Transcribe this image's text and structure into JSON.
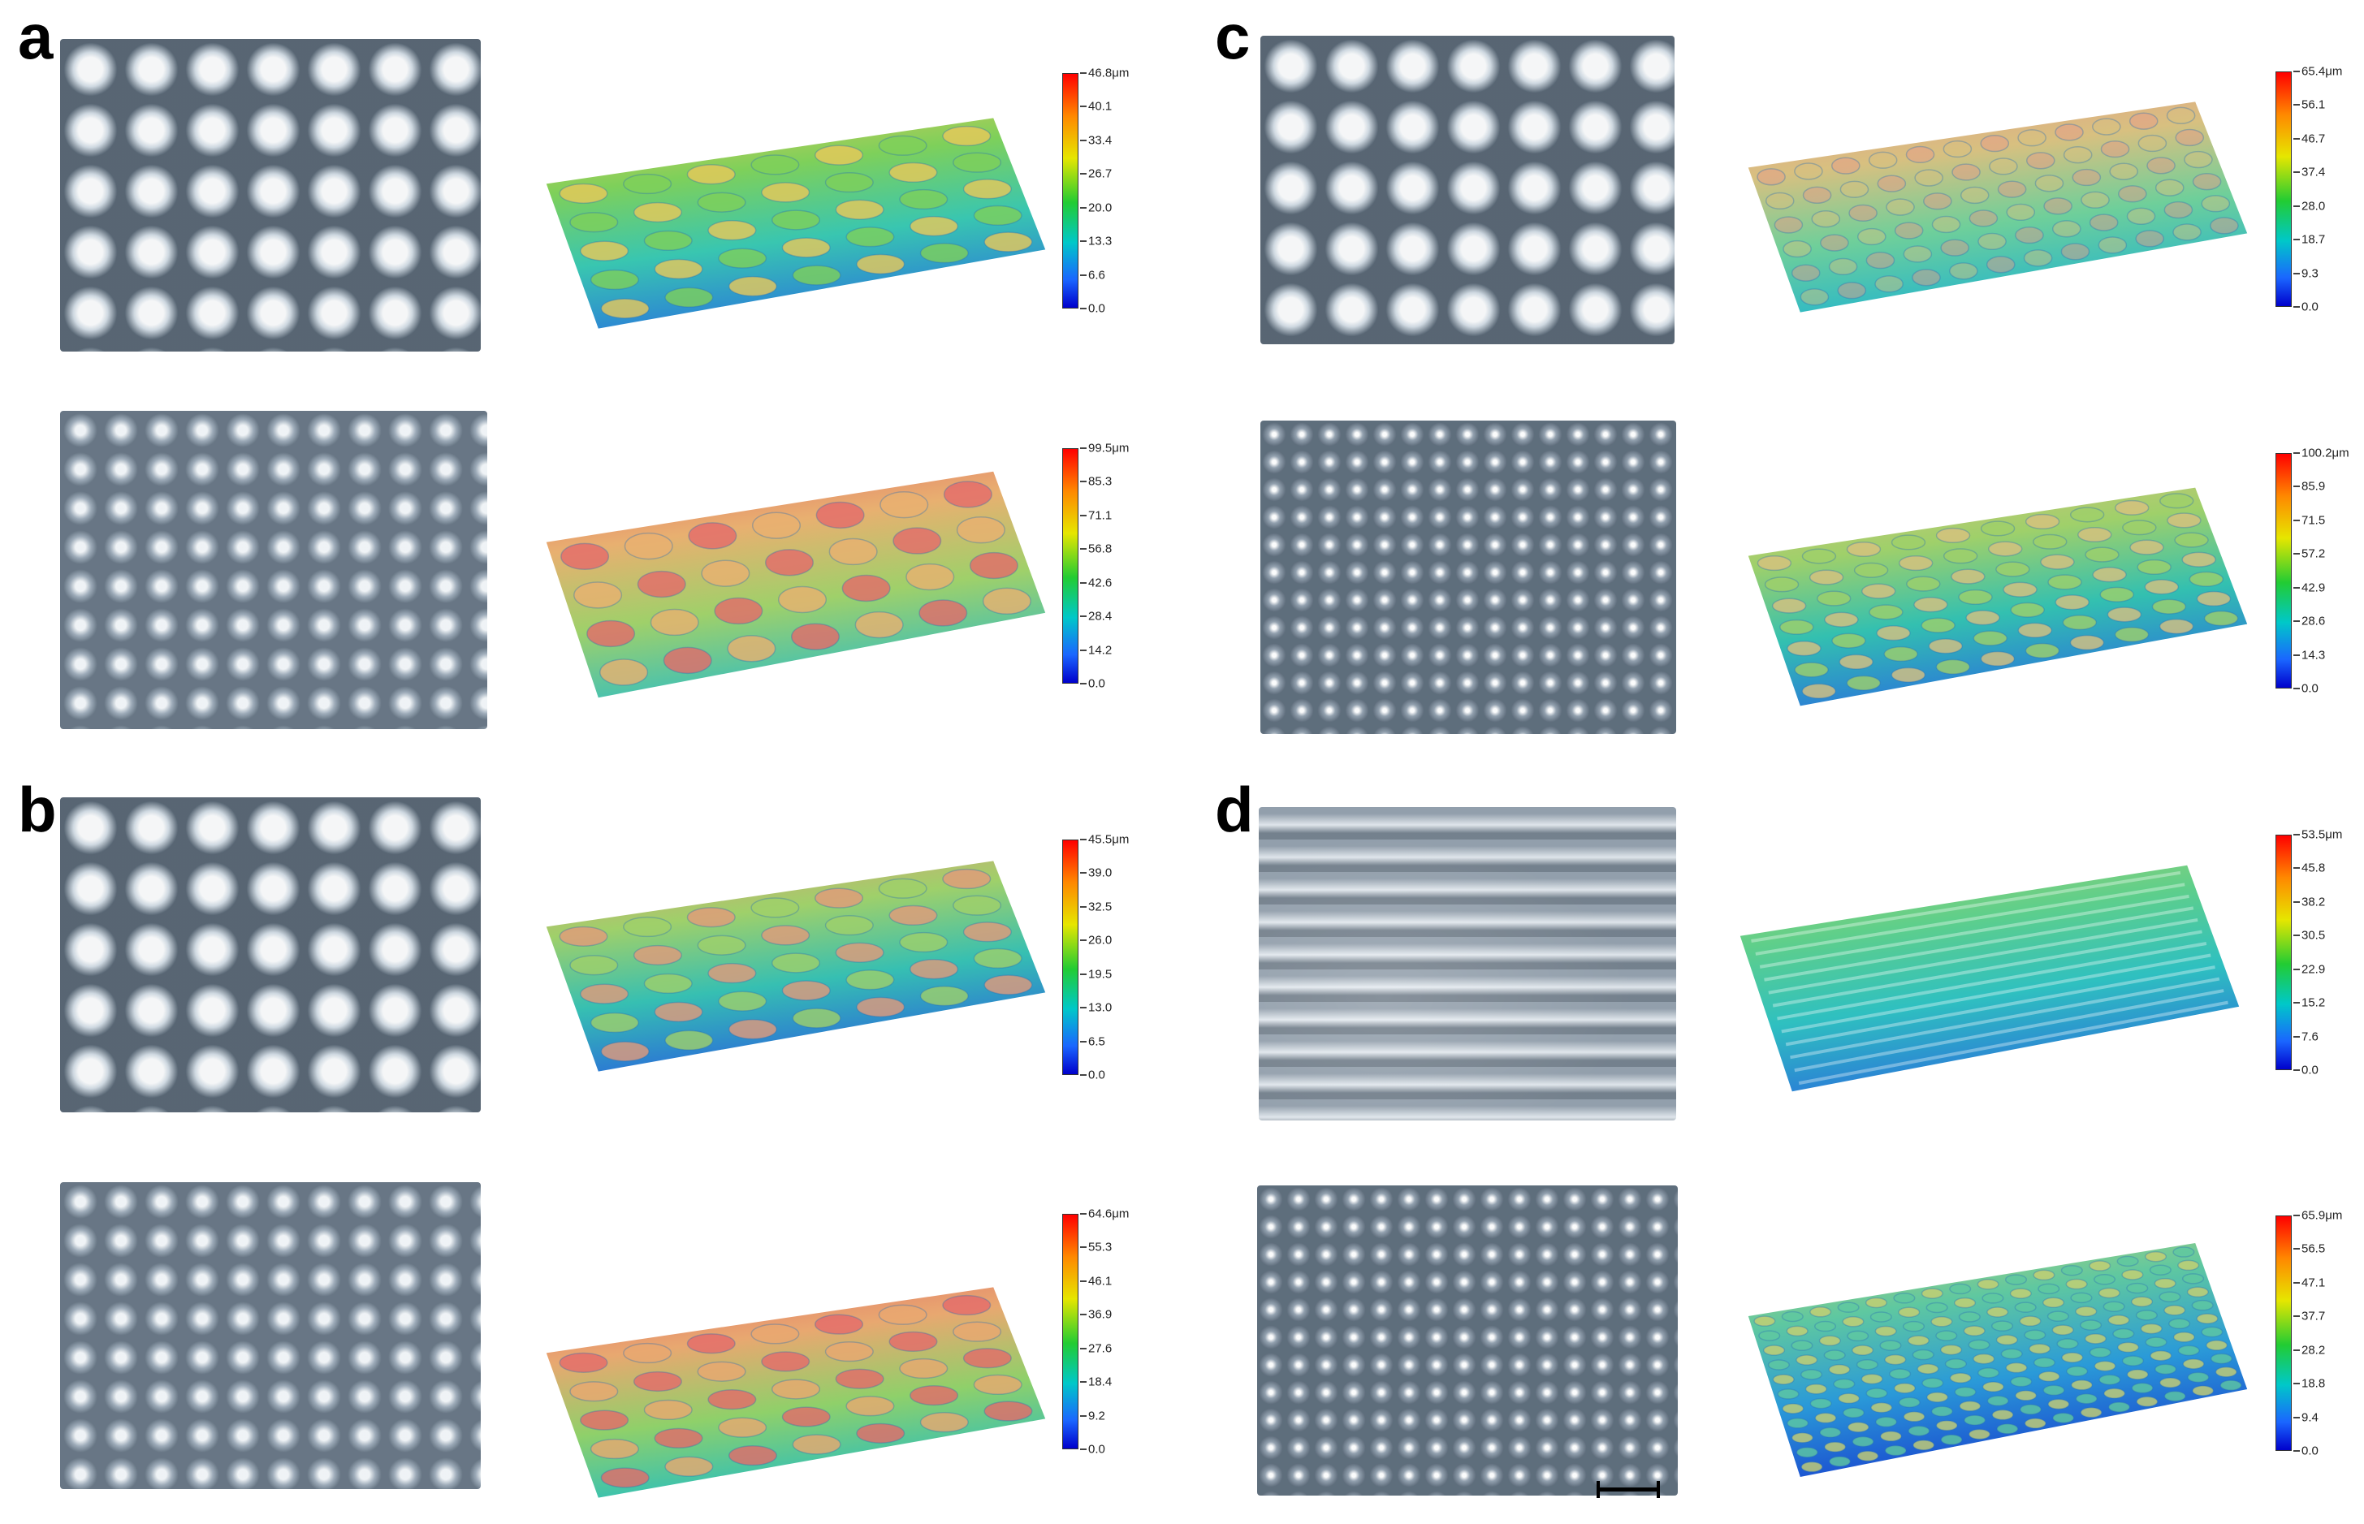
{
  "panels": [
    {
      "letter": "a",
      "rows": [
        {
          "texture": "large-cells",
          "colorbar": [
            "46.8μm",
            "40.1",
            "33.4",
            "26.7",
            "20.0",
            "13.3",
            "6.6",
            "0.0"
          ],
          "surface": {
            "shape": "grid",
            "palette": [
              "#e8c85a",
              "#7ed05a",
              "#39c6b0",
              "#2a7fd8"
            ]
          }
        },
        {
          "texture": "small-cells",
          "colorbar": [
            "99.5μm",
            "85.3",
            "71.1",
            "56.8",
            "42.6",
            "28.4",
            "14.2",
            "0.0"
          ],
          "surface": {
            "shape": "ridges",
            "palette": [
              "#e46a6a",
              "#e8b070",
              "#9fd06a",
              "#3cc0b8"
            ]
          }
        }
      ]
    },
    {
      "letter": "b",
      "rows": [
        {
          "texture": "large-cells",
          "colorbar": [
            "45.5μm",
            "39.0",
            "32.5",
            "26.0",
            "19.5",
            "13.0",
            "6.5",
            "0.0"
          ],
          "surface": {
            "shape": "grid",
            "palette": [
              "#e29a7a",
              "#9fd06a",
              "#36bfb2",
              "#2a70d8"
            ]
          }
        },
        {
          "texture": "small-cells",
          "colorbar": [
            "64.6μm",
            "55.3",
            "46.1",
            "36.9",
            "27.6",
            "18.4",
            "9.2",
            "0.0"
          ],
          "surface": {
            "shape": "grid",
            "palette": [
              "#e46a6a",
              "#e8a870",
              "#8fd06a",
              "#2fc0b8"
            ]
          }
        }
      ]
    },
    {
      "letter": "c",
      "rows": [
        {
          "texture": "large-cells",
          "colorbar": [
            "65.4μm",
            "56.1",
            "46.7",
            "37.4",
            "28.0",
            "18.7",
            "9.3",
            "0.0"
          ],
          "surface": {
            "shape": "flat",
            "palette": [
              "#e69a8a",
              "#d8c080",
              "#6fcf9a",
              "#2ab8c8"
            ]
          }
        },
        {
          "texture": "dense-cells",
          "colorbar": [
            "100.2μm",
            "85.9",
            "71.5",
            "57.2",
            "42.9",
            "28.6",
            "14.3",
            "0.0"
          ],
          "surface": {
            "shape": "bumps",
            "palette": [
              "#d8c080",
              "#9fd06a",
              "#33c0b0",
              "#2a7ad8"
            ]
          }
        }
      ]
    },
    {
      "letter": "d",
      "rows": [
        {
          "texture": "streaks",
          "colorbar": [
            "53.5μm",
            "45.8",
            "38.2",
            "30.5",
            "22.9",
            "15.2",
            "7.6",
            "0.0"
          ],
          "surface": {
            "shape": "streaks",
            "palette": [
              "#a8d070",
              "#5fcf8a",
              "#2fc0c0",
              "#2a7ad8"
            ]
          }
        },
        {
          "texture": "dense-cells",
          "colorbar": [
            "65.9μm",
            "56.5",
            "47.1",
            "37.7",
            "28.2",
            "18.8",
            "9.4",
            "0.0"
          ],
          "surface": {
            "shape": "dense",
            "palette": [
              "#c8d070",
              "#5fc8a0",
              "#2a9ad8",
              "#1a4ad0"
            ]
          }
        }
      ]
    }
  ]
}
